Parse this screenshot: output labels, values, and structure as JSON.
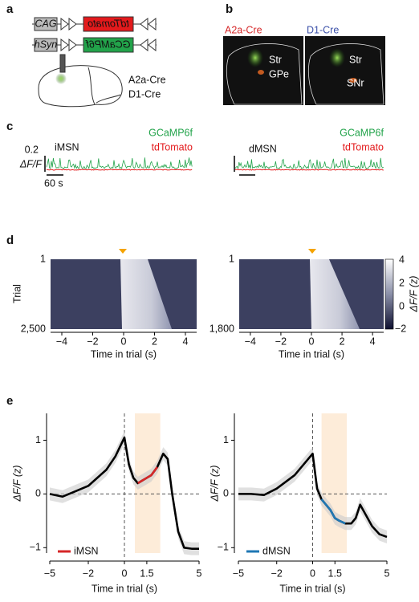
{
  "panels": {
    "a": {
      "label": "a",
      "promoters": [
        "CAG",
        "hSyn"
      ],
      "genes": [
        "tdTomato",
        "GCaMP6f"
      ],
      "mice": [
        "A2a-Cre",
        "D1-Cre"
      ]
    },
    "b": {
      "label": "b",
      "titles": [
        "A2a-Cre",
        "D1-Cre"
      ],
      "regions": [
        [
          "Str",
          "GPe"
        ],
        [
          "Str",
          "SNr"
        ]
      ]
    },
    "c": {
      "label": "c",
      "legend": [
        "GCaMP6f",
        "tdTomato"
      ],
      "cells": [
        "iMSN",
        "dMSN"
      ],
      "scale_y": "0.2",
      "scale_y_unit": "ΔF/F",
      "scale_x": "60 s"
    },
    "d": {
      "label": "d",
      "ylabel": "Trial",
      "xlabel": "Time in trial (s)",
      "xticks": [
        "−4",
        "−2",
        "0",
        "2",
        "4"
      ],
      "trial_ranges": [
        [
          "1",
          "2,500"
        ],
        [
          "1",
          "1,800"
        ]
      ],
      "colorbar_ticks": [
        "4",
        "2",
        "0",
        "−2"
      ],
      "colorbar_label": "ΔF/F (z)"
    },
    "e": {
      "label": "e"
    }
  },
  "chart_data": [
    {
      "type": "line",
      "xlabel": "Time in trial (s)",
      "ylabel": "ΔF/F (z)",
      "x": [
        -5,
        -4,
        -3,
        -2,
        -1,
        -0.5,
        0,
        0.3,
        0.6,
        0.9,
        1.2,
        1.5,
        1.8,
        2.2,
        2.6,
        2.9,
        3.2,
        3.6,
        4,
        4.5,
        5
      ],
      "series": [
        {
          "name": "iMSN",
          "color": "#d62728",
          "values": [
            0,
            -0.05,
            0.05,
            0.15,
            0.45,
            0.7,
            1.05,
            0.55,
            0.3,
            0.2,
            0.25,
            0.3,
            0.35,
            0.5,
            0.75,
            0.65,
            0.0,
            -0.7,
            -1.0,
            -1.02,
            -1.02
          ]
        }
      ],
      "xlim": [
        -5,
        5
      ],
      "ylim": [
        -1.1,
        1.5
      ],
      "xticks": [
        {
          "value": -5,
          "label": "−5"
        },
        {
          "value": -2,
          "label": "−2"
        },
        0,
        1.5,
        5
      ],
      "yticks": [
        1,
        0,
        {
          "value": -1,
          "label": "−1"
        }
      ]
    },
    {
      "type": "line",
      "xlabel": "Time in trial (s)",
      "ylabel": "ΔF/F (z)",
      "x": [
        -5,
        -4,
        -3,
        -2,
        -1,
        -0.5,
        0,
        0.3,
        0.6,
        0.9,
        1.2,
        1.5,
        1.8,
        2.2,
        2.6,
        2.9,
        3.2,
        3.6,
        4,
        4.5,
        5
      ],
      "series": [
        {
          "name": "dMSN",
          "color": "#1f77b4",
          "values": [
            0,
            0,
            -0.02,
            0.1,
            0.35,
            0.55,
            0.75,
            0.1,
            -0.1,
            -0.2,
            -0.3,
            -0.45,
            -0.5,
            -0.55,
            -0.55,
            -0.45,
            -0.2,
            -0.4,
            -0.6,
            -0.75,
            -0.8
          ]
        }
      ],
      "xlim": [
        -5,
        5
      ],
      "ylim": [
        -1.1,
        1.5
      ],
      "xticks": [
        {
          "value": -5,
          "label": "−5"
        },
        {
          "value": -2,
          "label": "−2"
        },
        0,
        1.5,
        5
      ],
      "yticks": [
        1,
        0,
        {
          "value": -1,
          "label": "−1"
        }
      ]
    }
  ]
}
